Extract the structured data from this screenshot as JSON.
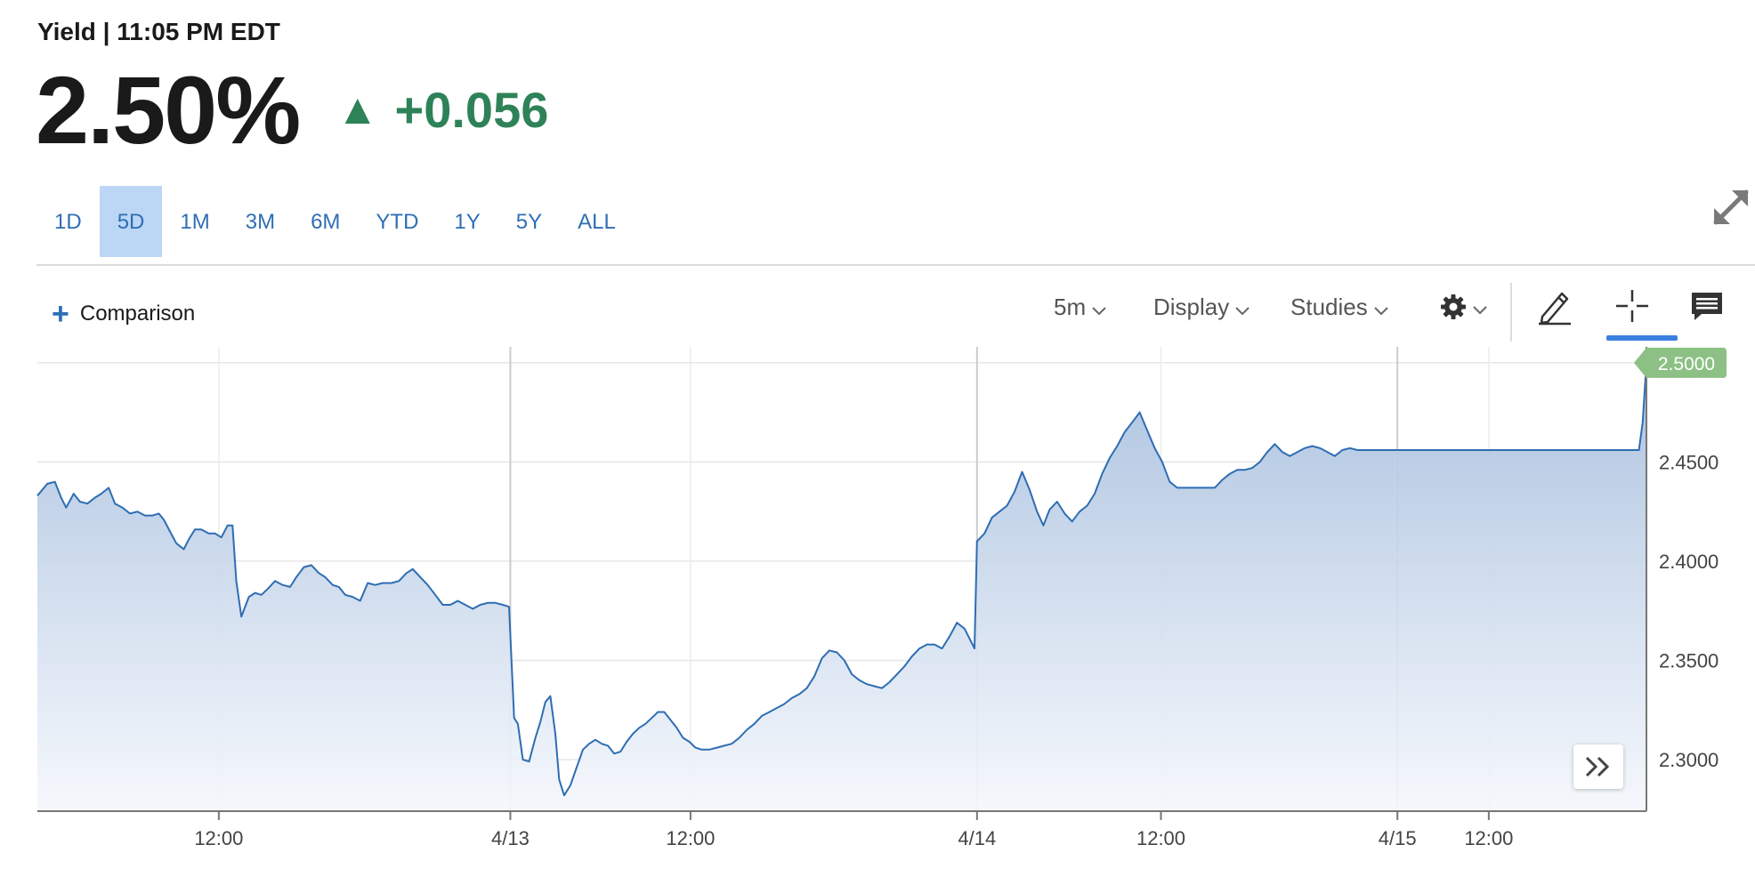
{
  "header": {
    "heading": "Yield | 11:05 PM EDT",
    "value": "2.50%",
    "change_arrow": "▲",
    "change": "+0.056",
    "change_color": "#2e8258"
  },
  "range_tabs": [
    {
      "label": "1D",
      "active": false
    },
    {
      "label": "5D",
      "active": true
    },
    {
      "label": "1M",
      "active": false
    },
    {
      "label": "3M",
      "active": false
    },
    {
      "label": "6M",
      "active": false
    },
    {
      "label": "YTD",
      "active": false
    },
    {
      "label": "1Y",
      "active": false
    },
    {
      "label": "5Y",
      "active": false
    },
    {
      "label": "ALL",
      "active": false
    }
  ],
  "toolbar": {
    "comparison_label": "Comparison",
    "interval": "5m",
    "display": "Display",
    "studies": "Studies",
    "icons": [
      "plus-icon",
      "chevron-down-icon",
      "gear-icon",
      "pencil-icon",
      "crosshair-icon",
      "comment-icon",
      "expand-icon",
      "double-chevron-right-icon"
    ]
  },
  "chart_data": {
    "type": "area",
    "title": "",
    "xlabel": "",
    "ylabel": "",
    "ylim": [
      2.274,
      2.508
    ],
    "y_ticks": [
      "2.3000",
      "2.3500",
      "2.4000",
      "2.4500"
    ],
    "x_labels": [
      "12:00",
      "4/13",
      "12:00",
      "4/14",
      "12:00",
      "4/15",
      "12:00"
    ],
    "last_value_label": "2.5000",
    "line_color": "#2e6db3",
    "fill_top_color": "#a8c0de",
    "badge_color": "#8cc084",
    "grid": true,
    "series": [
      {
        "points": [
          [
            0.0,
            2.433
          ],
          [
            0.4,
            2.439
          ],
          [
            0.7,
            2.44
          ],
          [
            0.95,
            2.432
          ],
          [
            1.15,
            2.427
          ],
          [
            1.45,
            2.434
          ],
          [
            1.7,
            2.43
          ],
          [
            2.0,
            2.429
          ],
          [
            2.3,
            2.432
          ],
          [
            2.55,
            2.434
          ],
          [
            2.85,
            2.437
          ],
          [
            3.1,
            2.429
          ],
          [
            3.4,
            2.427
          ],
          [
            3.7,
            2.424
          ],
          [
            4.0,
            2.425
          ],
          [
            4.3,
            2.423
          ],
          [
            4.6,
            2.423
          ],
          [
            4.85,
            2.424
          ],
          [
            5.05,
            2.421
          ],
          [
            5.3,
            2.415
          ],
          [
            5.55,
            2.409
          ],
          [
            5.85,
            2.406
          ],
          [
            6.05,
            2.411
          ],
          [
            6.3,
            2.416
          ],
          [
            6.55,
            2.416
          ],
          [
            6.85,
            2.414
          ],
          [
            7.1,
            2.414
          ],
          [
            7.35,
            2.412
          ],
          [
            7.6,
            2.418
          ],
          [
            7.8,
            2.418
          ],
          [
            7.95,
            2.39
          ],
          [
            8.15,
            2.372
          ],
          [
            8.45,
            2.382
          ],
          [
            8.7,
            2.384
          ],
          [
            8.95,
            2.383
          ],
          [
            9.2,
            2.386
          ],
          [
            9.5,
            2.39
          ],
          [
            9.8,
            2.388
          ],
          [
            10.1,
            2.387
          ],
          [
            10.35,
            2.392
          ],
          [
            10.65,
            2.397
          ],
          [
            10.95,
            2.398
          ],
          [
            11.25,
            2.394
          ],
          [
            11.5,
            2.392
          ],
          [
            11.8,
            2.388
          ],
          [
            12.05,
            2.387
          ],
          [
            12.3,
            2.383
          ],
          [
            12.6,
            2.382
          ],
          [
            12.9,
            2.38
          ],
          [
            13.2,
            2.389
          ],
          [
            13.5,
            2.388
          ],
          [
            13.8,
            2.389
          ],
          [
            14.15,
            2.389
          ],
          [
            14.45,
            2.39
          ],
          [
            14.75,
            2.394
          ],
          [
            15.0,
            2.396
          ],
          [
            15.3,
            2.392
          ],
          [
            15.6,
            2.388
          ],
          [
            15.9,
            2.383
          ],
          [
            16.2,
            2.378
          ],
          [
            16.5,
            2.378
          ],
          [
            16.8,
            2.38
          ],
          [
            17.1,
            2.378
          ],
          [
            17.4,
            2.376
          ],
          [
            17.7,
            2.378
          ],
          [
            18.0,
            2.379
          ],
          [
            18.3,
            2.379
          ],
          [
            18.6,
            2.378
          ],
          [
            18.85,
            2.377
          ],
          [
            19.05,
            2.321
          ],
          [
            19.2,
            2.318
          ],
          [
            19.4,
            2.3
          ],
          [
            19.65,
            2.299
          ],
          [
            19.9,
            2.311
          ],
          [
            20.1,
            2.319
          ],
          [
            20.3,
            2.329
          ],
          [
            20.5,
            2.332
          ],
          [
            20.7,
            2.313
          ],
          [
            20.85,
            2.29
          ],
          [
            21.05,
            2.282
          ],
          [
            21.3,
            2.287
          ],
          [
            21.55,
            2.296
          ],
          [
            21.8,
            2.305
          ],
          [
            22.05,
            2.308
          ],
          [
            22.3,
            2.31
          ],
          [
            22.55,
            2.308
          ],
          [
            22.8,
            2.307
          ],
          [
            23.05,
            2.303
          ],
          [
            23.3,
            2.304
          ],
          [
            23.55,
            2.309
          ],
          [
            23.8,
            2.313
          ],
          [
            24.05,
            2.316
          ],
          [
            24.3,
            2.318
          ],
          [
            24.55,
            2.321
          ],
          [
            24.8,
            2.324
          ],
          [
            25.05,
            2.324
          ],
          [
            25.3,
            2.32
          ],
          [
            25.55,
            2.316
          ],
          [
            25.8,
            2.311
          ],
          [
            26.05,
            2.309
          ],
          [
            26.3,
            2.306
          ],
          [
            26.55,
            2.305
          ],
          [
            26.85,
            2.305
          ],
          [
            27.15,
            2.306
          ],
          [
            27.45,
            2.307
          ],
          [
            27.75,
            2.308
          ],
          [
            28.05,
            2.311
          ],
          [
            28.35,
            2.315
          ],
          [
            28.65,
            2.318
          ],
          [
            28.95,
            2.322
          ],
          [
            29.25,
            2.324
          ],
          [
            29.55,
            2.326
          ],
          [
            29.85,
            2.328
          ],
          [
            30.15,
            2.331
          ],
          [
            30.45,
            2.333
          ],
          [
            30.75,
            2.336
          ],
          [
            31.05,
            2.342
          ],
          [
            31.35,
            2.351
          ],
          [
            31.65,
            2.355
          ],
          [
            31.95,
            2.354
          ],
          [
            32.25,
            2.35
          ],
          [
            32.55,
            2.343
          ],
          [
            32.85,
            2.34
          ],
          [
            33.15,
            2.338
          ],
          [
            33.45,
            2.337
          ],
          [
            33.75,
            2.336
          ],
          [
            34.05,
            2.339
          ],
          [
            34.35,
            2.343
          ],
          [
            34.65,
            2.347
          ],
          [
            34.95,
            2.352
          ],
          [
            35.25,
            2.356
          ],
          [
            35.55,
            2.358
          ],
          [
            35.85,
            2.358
          ],
          [
            36.15,
            2.356
          ],
          [
            36.45,
            2.362
          ],
          [
            36.75,
            2.369
          ],
          [
            37.05,
            2.366
          ],
          [
            37.25,
            2.361
          ],
          [
            37.45,
            2.356
          ],
          [
            37.55,
            2.41
          ],
          [
            37.85,
            2.414
          ],
          [
            38.15,
            2.422
          ],
          [
            38.45,
            2.425
          ],
          [
            38.75,
            2.428
          ],
          [
            39.05,
            2.435
          ],
          [
            39.35,
            2.445
          ],
          [
            39.65,
            2.436
          ],
          [
            39.95,
            2.425
          ],
          [
            40.2,
            2.418
          ],
          [
            40.45,
            2.426
          ],
          [
            40.75,
            2.43
          ],
          [
            41.05,
            2.424
          ],
          [
            41.35,
            2.42
          ],
          [
            41.65,
            2.425
          ],
          [
            41.95,
            2.428
          ],
          [
            42.25,
            2.434
          ],
          [
            42.55,
            2.444
          ],
          [
            42.85,
            2.452
          ],
          [
            43.15,
            2.458
          ],
          [
            43.45,
            2.465
          ],
          [
            43.75,
            2.47
          ],
          [
            44.05,
            2.475
          ],
          [
            44.35,
            2.466
          ],
          [
            44.65,
            2.457
          ],
          [
            44.95,
            2.45
          ],
          [
            45.25,
            2.44
          ],
          [
            45.55,
            2.437
          ],
          [
            45.85,
            2.437
          ],
          [
            46.15,
            2.437
          ],
          [
            46.45,
            2.437
          ],
          [
            46.75,
            2.437
          ],
          [
            47.05,
            2.437
          ],
          [
            47.35,
            2.441
          ],
          [
            47.65,
            2.444
          ],
          [
            47.95,
            2.446
          ],
          [
            48.25,
            2.446
          ],
          [
            48.55,
            2.447
          ],
          [
            48.85,
            2.45
          ],
          [
            49.15,
            2.455
          ],
          [
            49.45,
            2.459
          ],
          [
            49.75,
            2.455
          ],
          [
            50.05,
            2.453
          ],
          [
            50.35,
            2.455
          ],
          [
            50.65,
            2.457
          ],
          [
            50.95,
            2.458
          ],
          [
            51.25,
            2.457
          ],
          [
            51.55,
            2.455
          ],
          [
            51.85,
            2.453
          ],
          [
            52.15,
            2.456
          ],
          [
            52.45,
            2.457
          ],
          [
            52.75,
            2.456
          ],
          [
            53.05,
            2.456
          ],
          [
            54.0,
            2.456
          ],
          [
            55.0,
            2.456
          ],
          [
            56.0,
            2.456
          ],
          [
            57.0,
            2.456
          ],
          [
            58.0,
            2.456
          ],
          [
            59.0,
            2.456
          ],
          [
            60.0,
            2.456
          ],
          [
            61.0,
            2.456
          ],
          [
            62.0,
            2.456
          ],
          [
            63.0,
            2.456
          ],
          [
            64.0,
            2.456
          ],
          [
            64.15,
            2.47
          ],
          [
            64.3,
            2.5
          ]
        ]
      }
    ]
  }
}
